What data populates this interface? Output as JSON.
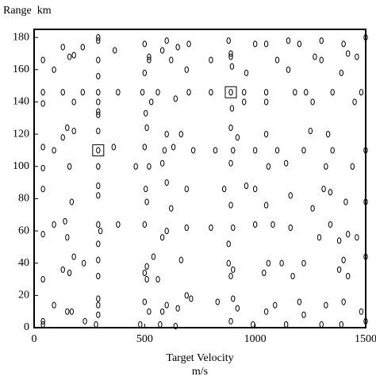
{
  "chart_data": {
    "type": "scatter",
    "y_label": "Range  km",
    "x_label": "Target Velocity",
    "x_unit": "m/s",
    "color": "#000000",
    "xlim": [
      0,
      1500
    ],
    "ylim": [
      0,
      185
    ],
    "xticks": [
      0,
      500,
      1000,
      1500
    ],
    "yticks": [
      0,
      20,
      40,
      60,
      80,
      100,
      120,
      140,
      160,
      180
    ],
    "x": [
      290,
      290,
      500,
      600,
      650,
      700,
      880,
      1000,
      1050,
      1150,
      1200,
      1300,
      1400,
      1500,
      130,
      220,
      580,
      1420,
      40,
      160,
      180,
      290,
      365,
      520,
      520,
      620,
      800,
      890,
      890,
      1100,
      1270,
      1300,
      1460,
      90,
      290,
      500,
      690,
      895,
      960,
      1150,
      1390,
      40,
      130,
      220,
      290,
      380,
      490,
      560,
      700,
      800,
      890,
      950,
      1050,
      1180,
      1230,
      1350,
      1480,
      40,
      180,
      290,
      530,
      640,
      950,
      1050,
      1260,
      1450,
      290,
      290,
      505,
      895,
      150,
      180,
      290,
      510,
      600,
      665,
      890,
      920,
      1050,
      1250,
      1330,
      130,
      40,
      90,
      290,
      360,
      500,
      590,
      630,
      720,
      820,
      900,
      1000,
      1100,
      1220,
      1350,
      1500,
      40,
      160,
      290,
      460,
      520,
      580,
      890,
      1060,
      1140,
      1320,
      1440,
      40,
      170,
      290,
      290,
      505,
      600,
      690,
      860,
      960,
      1000,
      1160,
      1310,
      1340,
      1500,
      510,
      620,
      890,
      1050,
      1260,
      1410,
      40,
      90,
      140,
      290,
      300,
      380,
      500,
      600,
      690,
      800,
      900,
      1000,
      1080,
      1160,
      1340,
      1420,
      150,
      290,
      580,
      880,
      1290,
      1380,
      1460,
      1500,
      180,
      225,
      290,
      510,
      540,
      665,
      880,
      1060,
      1120,
      1220,
      1400,
      130,
      160,
      290,
      500,
      560,
      890,
      900,
      1040,
      1170,
      1380,
      1420,
      40,
      510,
      690,
      90,
      290,
      290,
      500,
      600,
      710,
      830,
      900,
      1090,
      1200,
      1320,
      1400,
      150,
      170,
      290,
      520,
      580,
      650,
      920,
      1050,
      1220,
      1480,
      40,
      230,
      280,
      480,
      570,
      640,
      890,
      990,
      1140,
      1300,
      1390,
      1500,
      40
    ],
    "values": [
      178,
      180,
      176,
      178,
      174,
      176,
      178,
      176,
      176,
      178,
      176,
      178,
      176,
      180,
      174,
      174,
      172,
      170,
      166,
      168,
      169,
      166,
      172,
      168,
      166,
      166,
      166,
      168,
      170,
      166,
      168,
      166,
      168,
      160,
      156,
      158,
      160,
      162,
      158,
      160,
      158,
      146,
      146,
      146,
      146,
      146,
      146,
      146,
      146,
      146,
      146,
      146,
      146,
      146,
      146,
      146,
      146,
      139,
      140,
      140,
      140,
      142,
      140,
      140,
      140,
      140,
      134,
      132,
      133,
      136,
      124,
      122,
      122,
      124,
      120,
      120,
      124,
      118,
      120,
      122,
      120,
      118,
      112,
      110,
      110,
      112,
      112,
      110,
      112,
      110,
      110,
      110,
      110,
      110,
      110,
      110,
      110,
      99,
      100,
      100,
      100,
      100,
      102,
      102,
      100,
      102,
      100,
      100,
      86,
      78,
      88,
      82,
      86,
      90,
      86,
      86,
      88,
      86,
      82,
      86,
      84,
      78,
      78,
      74,
      76,
      76,
      74,
      78,
      58,
      64,
      66,
      64,
      60,
      64,
      64,
      60,
      62,
      62,
      62,
      64,
      64,
      62,
      64,
      58,
      56,
      52,
      56,
      52,
      56,
      54,
      56,
      44,
      44,
      40,
      42,
      38,
      44,
      42,
      40,
      40,
      40,
      40,
      42,
      36,
      34,
      32,
      34,
      30,
      32,
      36,
      34,
      32,
      36,
      32,
      30,
      30,
      20,
      14,
      18,
      14,
      16,
      14,
      18,
      16,
      18,
      14,
      16,
      14,
      16,
      10,
      10,
      8,
      10,
      10,
      12,
      12,
      10,
      8,
      10,
      4,
      4,
      2,
      2,
      2,
      1,
      4,
      2,
      2,
      2,
      2,
      4,
      2
    ],
    "boxes": {
      "x": [
        290,
        890
      ],
      "values": [
        110,
        146
      ]
    }
  }
}
